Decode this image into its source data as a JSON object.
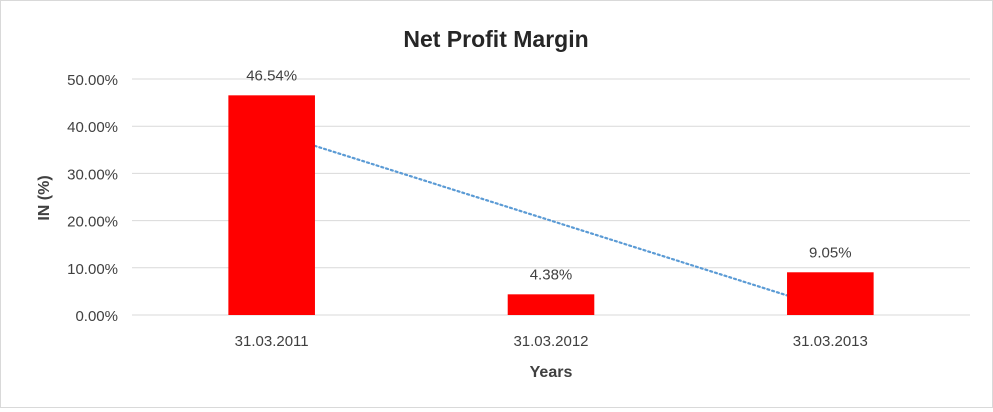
{
  "chart_data": {
    "type": "bar",
    "title": "Net Profit Margin",
    "xlabel": "Years",
    "ylabel": "IN (%)",
    "categories": [
      "31.03.2011",
      "31.03.2012",
      "31.03.2013"
    ],
    "values": [
      46.54,
      4.38,
      9.05
    ],
    "data_labels": [
      "46.54%",
      "4.38%",
      "9.05%"
    ],
    "ylim": [
      0,
      50
    ],
    "yticks": [
      0,
      10,
      20,
      30,
      40,
      50
    ],
    "ytick_labels": [
      "0.00%",
      "10.00%",
      "20.00%",
      "30.00%",
      "40.00%",
      "50.00%"
    ],
    "grid": true,
    "legend": "none",
    "trendline": {
      "type": "linear",
      "style": "dotted"
    },
    "colors": {
      "bar": "#ff0000",
      "trendline": "#5b9bd5",
      "grid": "#d9d9d9",
      "text": "#404040"
    }
  }
}
